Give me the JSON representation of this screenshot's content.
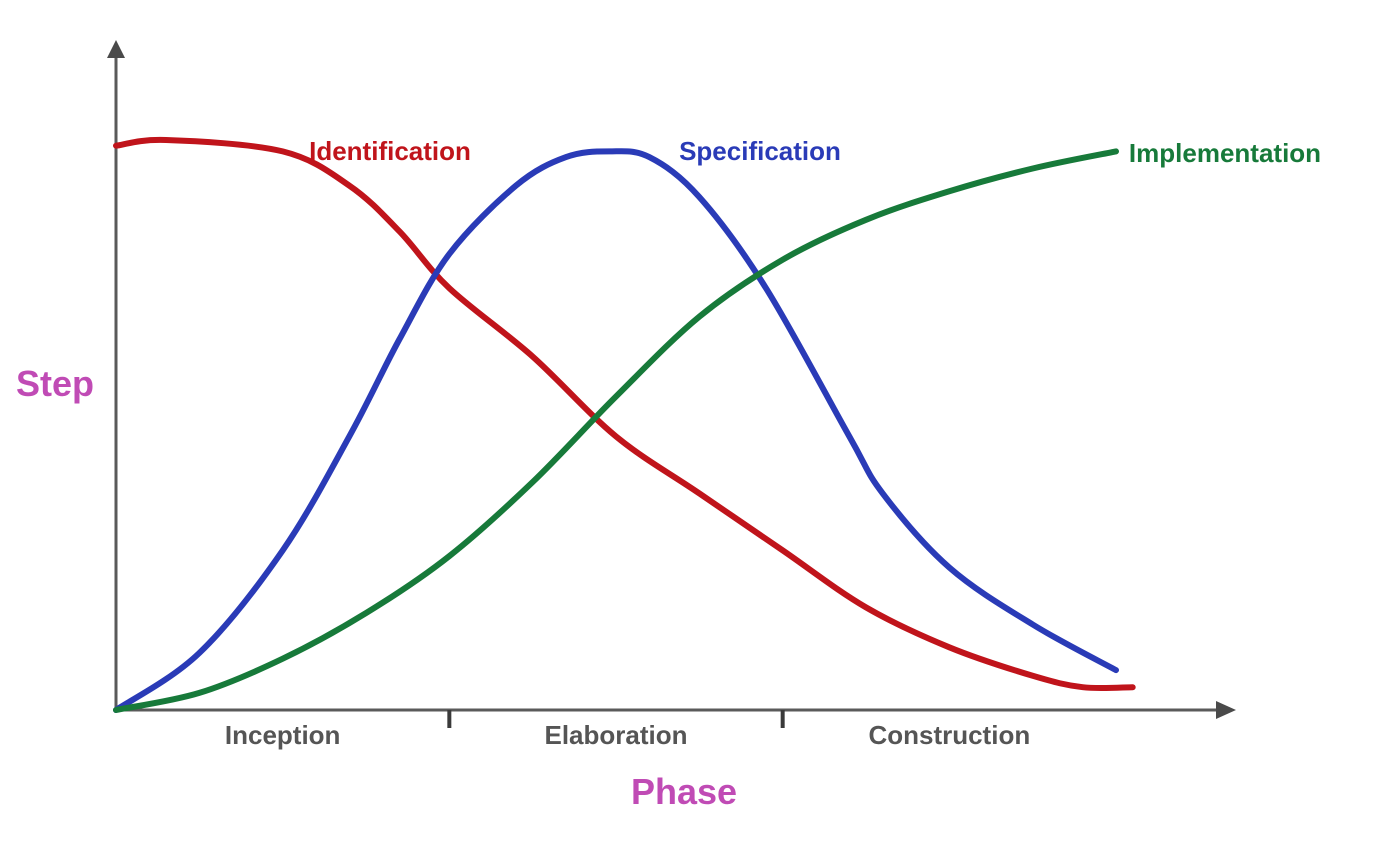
{
  "chart_data": {
    "type": "line",
    "xlabel": "Phase",
    "ylabel": "Step",
    "axis_title_color": "#C04BB5",
    "phase_label_color": "#555555",
    "categories": [
      "Inception",
      "Elaboration",
      "Construction"
    ],
    "xlim": [
      0,
      3
    ],
    "ylim": [
      0,
      1
    ],
    "grid": false,
    "legend": "inline-labels",
    "series": [
      {
        "name": "Identification",
        "color": "#C0141B",
        "x": [
          0,
          0.15,
          0.5,
          0.7,
          0.85,
          1.0,
          1.25,
          1.5,
          1.75,
          2.0,
          2.25,
          2.5,
          2.75,
          2.9,
          3.05
        ],
        "y": [
          0.99,
          1.0,
          0.98,
          0.92,
          0.84,
          0.74,
          0.62,
          0.48,
          0.38,
          0.28,
          0.18,
          0.11,
          0.06,
          0.04,
          0.04
        ]
      },
      {
        "name": "Specification",
        "color": "#2A3BB7",
        "x": [
          0,
          0.25,
          0.5,
          0.7,
          0.85,
          1.0,
          1.2,
          1.35,
          1.48,
          1.6,
          1.75,
          1.95,
          2.2,
          2.3,
          2.5,
          2.75,
          3.0
        ],
        "y": [
          0.0,
          0.1,
          0.28,
          0.48,
          0.65,
          0.8,
          0.92,
          0.97,
          0.98,
          0.97,
          0.9,
          0.74,
          0.48,
          0.38,
          0.25,
          0.15,
          0.07
        ]
      },
      {
        "name": "Implementation",
        "color": "#177A3A",
        "x": [
          0,
          0.25,
          0.5,
          0.75,
          1.0,
          1.25,
          1.5,
          1.75,
          2.0,
          2.25,
          2.5,
          2.75,
          3.0
        ],
        "y": [
          0.0,
          0.03,
          0.09,
          0.17,
          0.27,
          0.4,
          0.55,
          0.69,
          0.79,
          0.86,
          0.91,
          0.95,
          0.98
        ]
      }
    ]
  }
}
